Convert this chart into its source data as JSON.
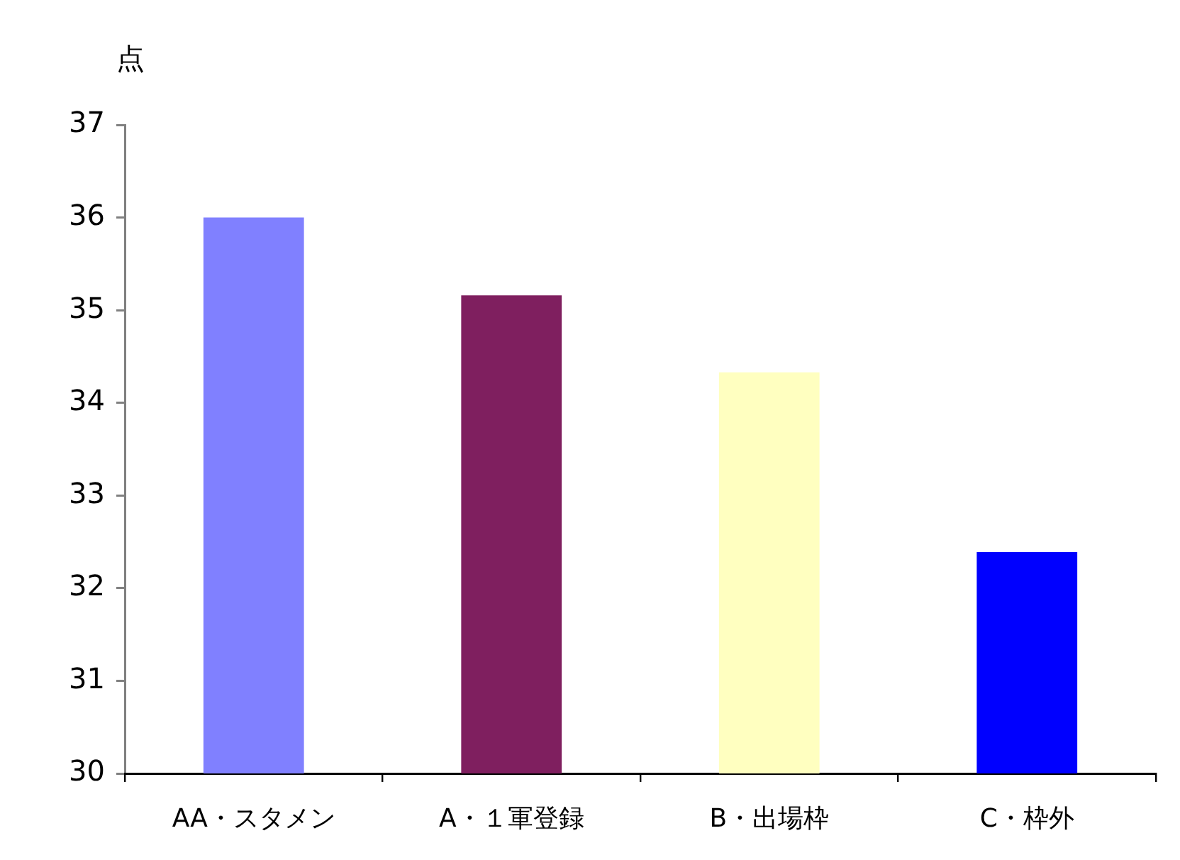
{
  "chart_data": {
    "type": "bar",
    "ylabel": "点",
    "categories": [
      "AA・スタメン",
      "A・１軍登録",
      "B・出場枠",
      "C・枠外"
    ],
    "values": [
      36.0,
      35.16,
      34.33,
      32.39
    ],
    "colors": [
      "#8080ff",
      "#7f1f5f",
      "#ffffc0",
      "#0000ff"
    ],
    "ylim": [
      30,
      37
    ],
    "yticks": [
      30,
      31,
      32,
      33,
      34,
      35,
      36,
      37
    ],
    "grid": false
  }
}
